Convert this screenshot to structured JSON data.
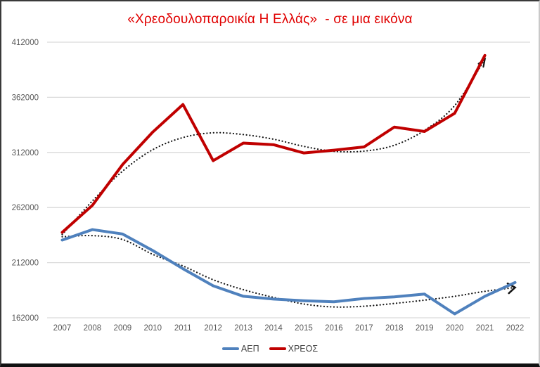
{
  "colors": {
    "title": "#e00000",
    "gdp_line": "#4f81bd",
    "debt_line": "#c00000",
    "trend_dots": "#161616",
    "gridline": "#d9d9d9",
    "axis_text": "#595959",
    "legend_text": "#3f3f3f"
  },
  "chart_data": {
    "type": "line",
    "title": "«Χρεοδουλοπαροικία Η Ελλάς»  - σε μια εικόνα",
    "categories": [
      "2007",
      "2008",
      "2009",
      "2010",
      "2011",
      "2012",
      "2013",
      "2014",
      "2015",
      "2016",
      "2017",
      "2018",
      "2019",
      "2020",
      "2021",
      "2022"
    ],
    "series": [
      {
        "name": "ΑΕΠ",
        "color": "#4f81bd",
        "values": [
          232500,
          242000,
          238000,
          223000,
          206500,
          191000,
          181500,
          179000,
          177500,
          176500,
          179500,
          181000,
          183500,
          165500,
          181500,
          194000
        ]
      },
      {
        "name": "ΧΡΕΟΣ",
        "color": "#c00000",
        "values": [
          239500,
          264000,
          301000,
          330500,
          355500,
          304500,
          320500,
          319000,
          311500,
          314000,
          317000,
          335000,
          331000,
          347500,
          400000,
          null
        ]
      }
    ],
    "trendlines": [
      {
        "for": "ΑΕΠ",
        "style": "dotted",
        "color": "#161616",
        "arrow": "right-chevron",
        "values": [
          235500,
          236500,
          233000,
          219500,
          209000,
          196500,
          187500,
          180500,
          174500,
          171800,
          172500,
          175000,
          178000,
          181500,
          186000,
          189500
        ]
      },
      {
        "for": "ΧΡΕΟΣ",
        "style": "dotted",
        "color": "#161616",
        "arrow": "up-right",
        "values": [
          237500,
          268000,
          295000,
          314500,
          325500,
          329800,
          328200,
          324000,
          317500,
          313000,
          313200,
          318500,
          332000,
          354500,
          396500,
          null
        ]
      }
    ],
    "yticks": [
      162000,
      212000,
      262000,
      312000,
      362000,
      412000
    ],
    "ytick_labels": [
      "162000",
      "212000",
      "262000",
      "312000",
      "362000",
      "412000"
    ],
    "ylim": [
      162000,
      412000
    ],
    "grid": "horizontal",
    "legend_position": "bottom-center",
    "legend": [
      "ΑΕΠ",
      "ΧΡΕΟΣ"
    ]
  }
}
